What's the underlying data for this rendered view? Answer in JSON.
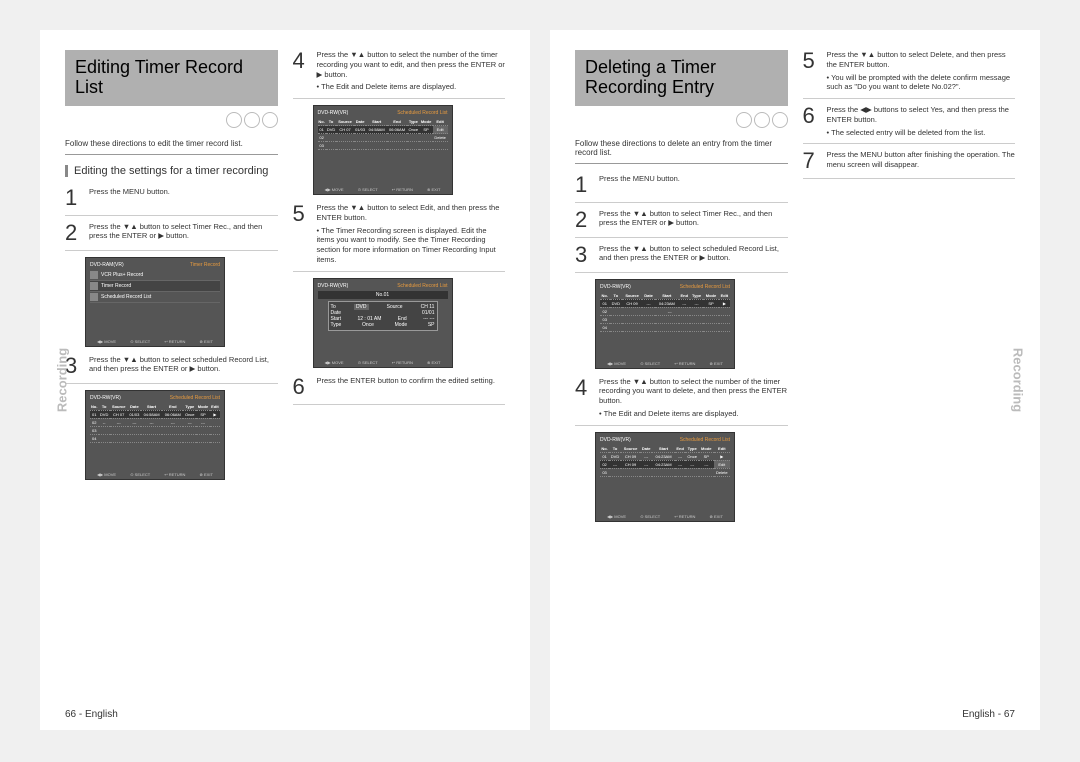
{
  "left_page": {
    "title": "Editing Timer Record List",
    "intro": "Follow these directions to edit the timer record list.",
    "subhead": "Editing the settings for a timer recording",
    "side_label": "Recording",
    "footer": "66 - English",
    "steps_left": [
      {
        "n": "1",
        "t": "Press the MENU button."
      },
      {
        "n": "2",
        "t": "Press the ▼▲ button to select Timer Rec., and then press the ENTER or ▶ button."
      },
      {
        "n": "3",
        "t": "Press the ▼▲ button to select scheduled Record List, and then press the ENTER or ▶ button."
      }
    ],
    "steps_right": [
      {
        "n": "4",
        "t": "Press the ▼▲ button to select the number of the timer recording you want to edit, and then press the ENTER or ▶ button.",
        "note": "• The Edit and Delete items are displayed."
      },
      {
        "n": "5",
        "t": "Press the ▼▲ button to select Edit, and then press the ENTER button.",
        "note": "• The Timer Recording screen is displayed. Edit the items you want to modify. See the Timer Recording section for more information on Timer Recording Input items."
      },
      {
        "n": "6",
        "t": "Press the ENTER button to confirm the edited setting."
      }
    ],
    "tv1": {
      "title_l": "DVD-RAM(VR)",
      "title_r": "Timer Record",
      "menu": [
        "Setup",
        "Timer Rec.",
        "Copy",
        "Disc List",
        "Playlist",
        "Disc Manager"
      ],
      "sub": [
        "VCR Plus+ Record",
        "Timer Record",
        "Scheduled Record List"
      ]
    },
    "tv2": {
      "title_l": "DVD-RW(VR)",
      "title_r": "Scheduled Record List",
      "headers": [
        "No.",
        "To",
        "Source",
        "Date",
        "Start",
        "End",
        "Type",
        "Mode",
        "Edit"
      ],
      "row": [
        "01",
        "DVD",
        "CH 07",
        "01/03",
        "04:58AM",
        "06:06AM",
        "Once",
        "SP",
        "▶"
      ]
    },
    "tv3": {
      "title_l": "DVD-RW(VR)",
      "title_r": "Scheduled Record List",
      "headers": [
        "No.",
        "To",
        "Source",
        "Date",
        "Start",
        "End",
        "Type",
        "Mode",
        "Edit"
      ],
      "row": [
        "01",
        "DVD",
        "CH 07",
        "01/03",
        "04:58AM",
        "06:06AM",
        "Once",
        "SP",
        "Edit"
      ],
      "popup": [
        "Edit",
        "Delete"
      ]
    },
    "tv4": {
      "title_l": "DVD-RW(VR)",
      "title_r": "Scheduled Record List",
      "popup_title": "No.01",
      "fields": [
        [
          "To",
          "DVD"
        ],
        [
          "Source",
          "CH 11"
        ],
        [
          "Date",
          "01/01"
        ],
        [
          "Start",
          "12 : 01 AM"
        ],
        [
          "End",
          "--- ---"
        ],
        [
          "Type",
          "Once"
        ],
        [
          "Mode",
          "SP"
        ]
      ]
    },
    "footerbar": [
      "◀▶ MOVE",
      "⊙ SELECT",
      "↩ RETURN",
      "⊗ EXIT"
    ]
  },
  "right_page": {
    "title": "Deleting a Timer Recording Entry",
    "intro": "Follow these directions to delete an entry from the timer record list.",
    "side_label": "Recording",
    "footer": "English - 67",
    "steps_left": [
      {
        "n": "1",
        "t": "Press the MENU button."
      },
      {
        "n": "2",
        "t": "Press the ▼▲ button to select Timer Rec., and then press the ENTER or ▶ button."
      },
      {
        "n": "3",
        "t": "Press the ▼▲ button to select scheduled Record List, and then press the ENTER or ▶ button."
      },
      {
        "n": "4",
        "t": "Press the ▼▲ button to select the number of the timer recording you want to delete, and then press the ENTER button.",
        "note": "• The Edit and Delete items are displayed."
      }
    ],
    "steps_right": [
      {
        "n": "5",
        "t": "Press the ▼▲ button to select Delete, and then press the ENTER button.",
        "note": "• You will be prompted with the delete confirm message such as \"Do you want to delete No.02?\"."
      },
      {
        "n": "6",
        "t": "Press the ◀▶ buttons to select Yes, and then press the ENTER button.",
        "note": "• The selected entry will be deleted from the list."
      },
      {
        "n": "7",
        "t": "Press the MENU button after finishing the operation. The menu screen will disappear."
      }
    ],
    "tv1": {
      "title_l": "DVD-RW(VR)",
      "title_r": "Scheduled Record List",
      "headers": [
        "No.",
        "To",
        "Source",
        "Date",
        "Start",
        "End",
        "Type",
        "Mode",
        "Edit"
      ],
      "row": [
        "01",
        "DVD",
        "CH 09",
        "---",
        "04:23AM",
        "---",
        "---",
        "SP",
        "▶"
      ]
    },
    "tv2": {
      "title_l": "DVD-RW(VR)",
      "title_r": "Scheduled Record List",
      "headers": [
        "No.",
        "To",
        "Source",
        "Date",
        "Start",
        "End",
        "Type",
        "Mode",
        "Edit"
      ],
      "rows": [
        [
          "01",
          "DVD",
          "CH 09",
          "---",
          "04:23AM",
          "---",
          "Once",
          "SP",
          "▶"
        ],
        [
          "02",
          "---",
          "CH 09",
          "---",
          "04:23AM",
          "---",
          "---",
          "---",
          "Edit"
        ]
      ],
      "popup": [
        "Edit",
        "Delete"
      ]
    },
    "footerbar": [
      "◀▶ MOVE",
      "⊙ SELECT",
      "↩ RETURN",
      "⊗ EXIT"
    ]
  }
}
